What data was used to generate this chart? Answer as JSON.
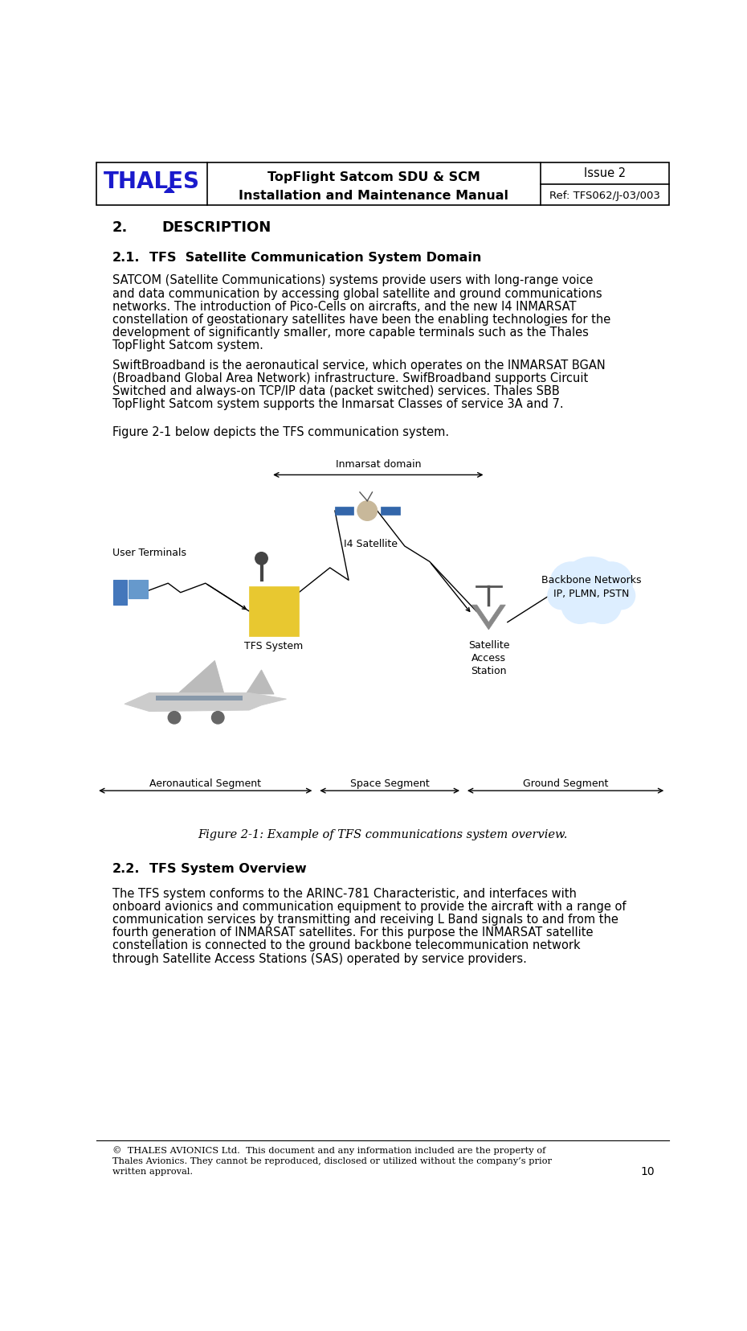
{
  "header_title_line1": "TopFlight Satcom SDU & SCM",
  "header_title_line2": "Installation and Maintenance Manual",
  "header_issue": "Issue 2",
  "header_ref": "Ref: TFS062/J-03/003",
  "section_number": "2.",
  "section_title": "DESCRIPTION",
  "subsection1_number": "2.1.",
  "subsection1_title": "TFS  Satellite Communication System Domain",
  "para1_lines": [
    "SATCOM (Satellite Communications) systems provide users with long-range voice",
    "and data communication by accessing global satellite and ground communications",
    "networks. The introduction of Pico-Cells on aircrafts, and the new I4 INMARSAT",
    "constellation of geostationary satellites have been the enabling technologies for the",
    "development of significantly smaller, more capable terminals such as the Thales",
    "TopFlight Satcom system."
  ],
  "para2_lines": [
    "SwiftBroadband is the aeronautical service, which operates on the INMARSAT BGAN",
    "(Broadband Global Area Network) infrastructure. SwifBroadband supports Circuit",
    "Switched and always-on TCP/IP data (packet switched) services. Thales SBB",
    "TopFlight Satcom system supports the Inmarsat Classes of service 3A and 7."
  ],
  "para3": "Figure 2-1 below depicts the TFS communication system.",
  "figure_caption": "Figure 2-1: Example of TFS communications system overview.",
  "subsection2_number": "2.2.",
  "subsection2_title": "TFS System Overview",
  "para4_lines": [
    "The TFS system conforms to the ARINC-781 Characteristic, and interfaces with",
    "onboard avionics and communication equipment to provide the aircraft with a range of",
    "communication services by transmitting and receiving L Band signals to and from the",
    "fourth generation of INMARSAT satellites. For this purpose the INMARSAT satellite",
    "constellation is connected to the ground backbone telecommunication network",
    "through Satellite Access Stations (SAS) operated by service providers."
  ],
  "footer_line1": "©  THALES AVIONICS Ltd.  This document and any information included are the property of",
  "footer_line2": "Thales Avionics. They cannot be reproduced, disclosed or utilized without the company’s prior",
  "footer_line3": "written approval.",
  "footer_page": "10",
  "inmarsat_domain_label": "Inmarsat domain",
  "tfs_system_label": "TFS System",
  "i4_satellite_label": "I4 Satellite",
  "backbone_label": "Backbone Networks\nIP, PLMN, PSTN",
  "user_terminals_label": "User Terminals",
  "satellite_access_label": "Satellite\nAccess\nStation",
  "aeronautical_label": "Aeronautical Segment",
  "space_label": "Space Segment",
  "ground_label": "Ground Segment",
  "bg_color": "#ffffff"
}
